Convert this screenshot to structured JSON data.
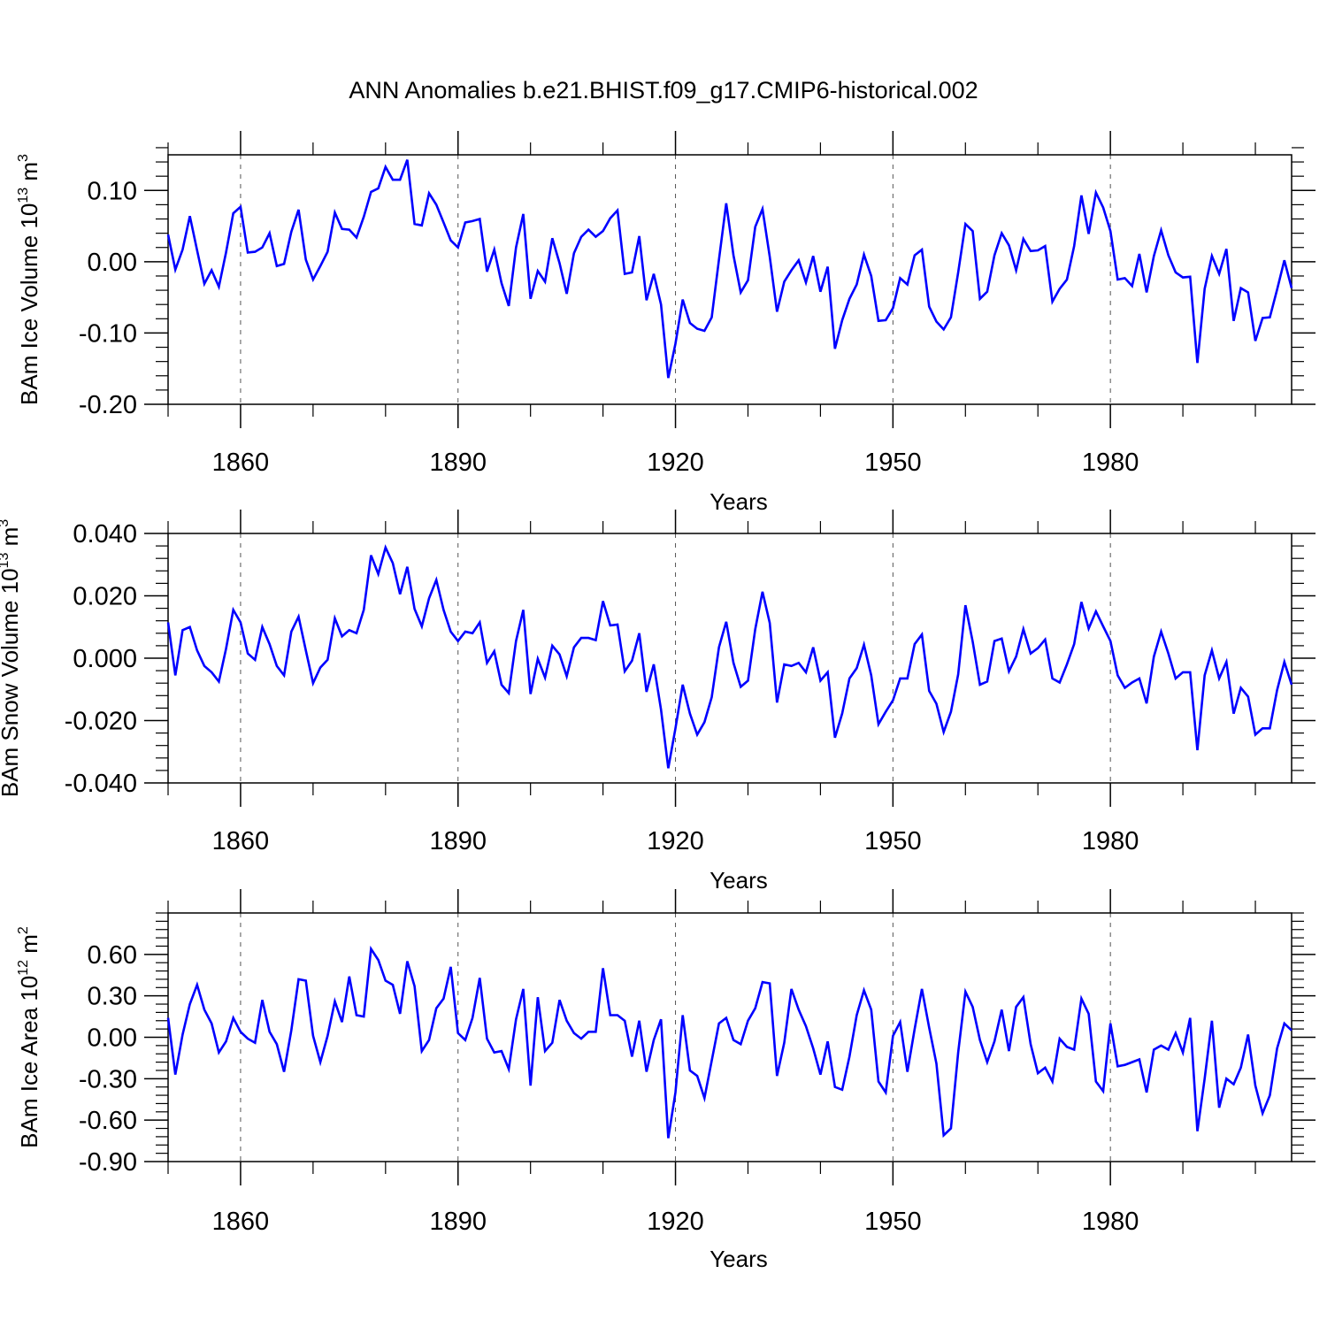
{
  "title": "ANN Anomalies b.e21.BHIST.f09_g17.CMIP6-historical.002",
  "colors": {
    "line": "#0000ff",
    "axis": "#000000",
    "grid": "#555555"
  },
  "chart_data": [
    {
      "type": "line",
      "title": "ANN Anomalies b.e21.BHIST.f09_g17.CMIP6-historical.002",
      "xlabel": "Years",
      "ylabel": {
        "prefix": "BAm Ice Volume 10",
        "exp": "13",
        "unit": " m",
        "unit_exp": "3"
      },
      "xlim": [
        1850,
        2005
      ],
      "ylim": [
        -0.2,
        0.15
      ],
      "x_ticks": [
        1860,
        1890,
        1920,
        1950,
        1980
      ],
      "x_tick_labels": [
        "1860",
        "1890",
        "1920",
        "1950",
        "1980"
      ],
      "y_ticks": [
        -0.2,
        -0.1,
        0.0,
        0.1
      ],
      "y_tick_labels": [
        "-0.20",
        "-0.10",
        "0.00",
        "0.10"
      ],
      "y_minor_step": 0.02,
      "x_start": 1850,
      "series": [
        {
          "name": "BAm Ice Volume",
          "values": [
            0.038,
            -0.011,
            0.017,
            0.064,
            0.016,
            -0.031,
            -0.012,
            -0.035,
            0.013,
            0.068,
            0.077,
            0.013,
            0.014,
            0.02,
            0.04,
            -0.006,
            -0.003,
            0.042,
            0.073,
            0.003,
            -0.025,
            -0.006,
            0.014,
            0.069,
            0.046,
            0.045,
            0.034,
            0.063,
            0.098,
            0.103,
            0.133,
            0.115,
            0.115,
            0.143,
            0.053,
            0.051,
            0.096,
            0.08,
            0.055,
            0.03,
            0.02,
            0.055,
            0.057,
            0.06,
            -0.014,
            0.017,
            -0.03,
            -0.062,
            0.02,
            0.067,
            -0.052,
            -0.013,
            -0.028,
            0.033,
            -0.002,
            -0.045,
            0.012,
            0.035,
            0.045,
            0.035,
            0.043,
            0.061,
            0.072,
            -0.017,
            -0.015,
            0.036,
            -0.054,
            -0.017,
            -0.06,
            -0.163,
            -0.115,
            -0.053,
            -0.086,
            -0.094,
            -0.097,
            -0.078,
            0.003,
            0.082,
            0.009,
            -0.043,
            -0.026,
            0.049,
            0.074,
            0.007,
            -0.07,
            -0.028,
            -0.012,
            0.002,
            -0.029,
            0.008,
            -0.042,
            -0.007,
            -0.122,
            -0.082,
            -0.052,
            -0.032,
            0.01,
            -0.02,
            -0.083,
            -0.082,
            -0.065,
            -0.023,
            -0.032,
            0.009,
            0.017,
            -0.063,
            -0.084,
            -0.095,
            -0.078,
            -0.015,
            0.053,
            0.043,
            -0.052,
            -0.042,
            0.009,
            0.04,
            0.023,
            -0.012,
            0.032,
            0.015,
            0.016,
            0.022,
            -0.056,
            -0.038,
            -0.025,
            0.022,
            0.093,
            0.039,
            0.097,
            0.076,
            0.043,
            -0.025,
            -0.023,
            -0.034,
            0.011,
            -0.043,
            0.008,
            0.044,
            0.009,
            -0.015,
            -0.022,
            -0.021,
            -0.142,
            -0.038,
            0.008,
            -0.017,
            0.018,
            -0.083,
            -0.037,
            -0.043,
            -0.111,
            -0.079,
            -0.078,
            -0.039,
            0.002,
            -0.037
          ]
        }
      ]
    },
    {
      "type": "line",
      "xlabel": "Years",
      "ylabel": {
        "prefix": "BAm Snow Volume 10",
        "exp": "13",
        "unit": " m",
        "unit_exp": "3"
      },
      "xlim": [
        1850,
        2005
      ],
      "ylim": [
        -0.04,
        0.04
      ],
      "x_ticks": [
        1860,
        1890,
        1920,
        1950,
        1980
      ],
      "x_tick_labels": [
        "1860",
        "1890",
        "1920",
        "1950",
        "1980"
      ],
      "y_ticks": [
        -0.04,
        -0.02,
        0.0,
        0.02,
        0.04
      ],
      "y_tick_labels": [
        "-0.040",
        "-0.020",
        "0.000",
        "0.020",
        "0.040"
      ],
      "y_minor_step": 0.004,
      "x_start": 1850,
      "series": [
        {
          "name": "BAm Snow Volume",
          "values": [
            0.0115,
            -0.0055,
            0.009,
            0.01,
            0.0025,
            -0.0025,
            -0.0045,
            -0.0075,
            0.003,
            0.0155,
            0.0115,
            0.0015,
            -0.0005,
            0.01,
            0.0045,
            -0.0025,
            -0.0055,
            0.0085,
            0.0133,
            0.0025,
            -0.008,
            -0.003,
            -0.0005,
            0.0128,
            0.007,
            0.009,
            0.008,
            0.0155,
            0.033,
            0.027,
            0.0355,
            0.0305,
            0.0205,
            0.0293,
            0.0158,
            0.0102,
            0.0192,
            0.0251,
            0.0155,
            0.0085,
            0.0055,
            0.0085,
            0.008,
            0.0115,
            -0.0015,
            0.0022,
            -0.0085,
            -0.0112,
            0.0055,
            0.0155,
            -0.0115,
            -0.0002,
            -0.0062,
            0.004,
            0.0012,
            -0.0058,
            0.0035,
            0.0065,
            0.0065,
            0.0058,
            0.0183,
            0.0105,
            0.0108,
            -0.0042,
            -0.0008,
            0.008,
            -0.0108,
            -0.002,
            -0.0165,
            -0.0353,
            -0.0225,
            -0.0085,
            -0.0178,
            -0.0245,
            -0.0205,
            -0.0125,
            0.0035,
            0.0117,
            -0.0015,
            -0.0092,
            -0.0072,
            0.0093,
            0.0213,
            0.0113,
            -0.0142,
            -0.002,
            -0.0025,
            -0.0015,
            -0.0045,
            0.0035,
            -0.0072,
            -0.0045,
            -0.0255,
            -0.0177,
            -0.0065,
            -0.0032,
            0.0043,
            -0.0055,
            -0.0212,
            -0.0172,
            -0.0135,
            -0.0065,
            -0.0065,
            0.0045,
            0.0076,
            -0.0105,
            -0.0146,
            -0.0237,
            -0.0172,
            -0.0052,
            0.017,
            0.0053,
            -0.0085,
            -0.0075,
            0.0055,
            0.0063,
            -0.0042,
            0.0005,
            0.0093,
            0.0015,
            0.0032,
            0.006,
            -0.0065,
            -0.0078,
            -0.002,
            0.0045,
            0.018,
            0.0095,
            0.015,
            0.0102,
            0.0055,
            -0.0055,
            -0.0095,
            -0.0078,
            -0.0065,
            -0.0145,
            0.0005,
            0.0085,
            0.0015,
            -0.0065,
            -0.0045,
            -0.0045,
            -0.0295,
            -0.0055,
            0.0025,
            -0.0065,
            -0.0012,
            -0.0178,
            -0.0095,
            -0.0123,
            -0.0245,
            -0.0225,
            -0.0225,
            -0.0102,
            -0.0012,
            -0.0085
          ]
        }
      ]
    },
    {
      "type": "line",
      "xlabel": "Years",
      "ylabel": {
        "prefix": "BAm Ice Area 10",
        "exp": "12",
        "unit": " m",
        "unit_exp": "2"
      },
      "xlim": [
        1850,
        2005
      ],
      "ylim": [
        -0.9,
        0.9
      ],
      "x_ticks": [
        1860,
        1890,
        1920,
        1950,
        1980
      ],
      "x_tick_labels": [
        "1860",
        "1890",
        "1920",
        "1950",
        "1980"
      ],
      "y_ticks": [
        -0.9,
        -0.6,
        -0.3,
        0.0,
        0.3,
        0.6
      ],
      "y_tick_labels": [
        "-0.90",
        "-0.60",
        "-0.30",
        "0.00",
        "0.30",
        "0.60"
      ],
      "y_minor_step": 0.06,
      "x_start": 1850,
      "series": [
        {
          "name": "BAm Ice Area",
          "values": [
            0.14,
            -0.27,
            0.02,
            0.24,
            0.38,
            0.2,
            0.1,
            -0.11,
            -0.03,
            0.14,
            0.04,
            -0.01,
            -0.04,
            0.27,
            0.04,
            -0.05,
            -0.25,
            0.05,
            0.42,
            0.41,
            0.01,
            -0.18,
            0.01,
            0.26,
            0.11,
            0.44,
            0.16,
            0.15,
            0.64,
            0.56,
            0.41,
            0.38,
            0.17,
            0.55,
            0.37,
            -0.1,
            -0.02,
            0.21,
            0.28,
            0.51,
            0.03,
            -0.02,
            0.14,
            0.43,
            -0.01,
            -0.11,
            -0.1,
            -0.23,
            0.13,
            0.35,
            -0.35,
            0.29,
            -0.1,
            -0.04,
            0.27,
            0.12,
            0.03,
            -0.01,
            0.04,
            0.04,
            0.5,
            0.16,
            0.16,
            0.12,
            -0.14,
            0.12,
            -0.25,
            -0.02,
            0.13,
            -0.73,
            -0.4,
            0.16,
            -0.24,
            -0.28,
            -0.44,
            -0.17,
            0.1,
            0.14,
            -0.02,
            -0.05,
            0.12,
            0.21,
            0.4,
            0.39,
            -0.28,
            -0.04,
            0.35,
            0.2,
            0.08,
            -0.08,
            -0.27,
            -0.03,
            -0.36,
            -0.38,
            -0.14,
            0.16,
            0.34,
            0.2,
            -0.32,
            -0.4,
            0.01,
            0.11,
            -0.25,
            0.06,
            0.35,
            0.07,
            -0.19,
            -0.71,
            -0.66,
            -0.11,
            0.33,
            0.22,
            -0.02,
            -0.18,
            -0.03,
            0.2,
            -0.1,
            0.22,
            0.29,
            -0.05,
            -0.26,
            -0.22,
            -0.32,
            -0.01,
            -0.07,
            -0.09,
            0.28,
            0.17,
            -0.32,
            -0.39,
            0.1,
            -0.21,
            -0.2,
            -0.18,
            -0.16,
            -0.4,
            -0.09,
            -0.06,
            -0.09,
            0.03,
            -0.11,
            0.14,
            -0.68,
            -0.3,
            0.12,
            -0.51,
            -0.3,
            -0.34,
            -0.22,
            0.02,
            -0.35,
            -0.55,
            -0.42,
            -0.08,
            0.1,
            0.05
          ]
        }
      ]
    }
  ]
}
